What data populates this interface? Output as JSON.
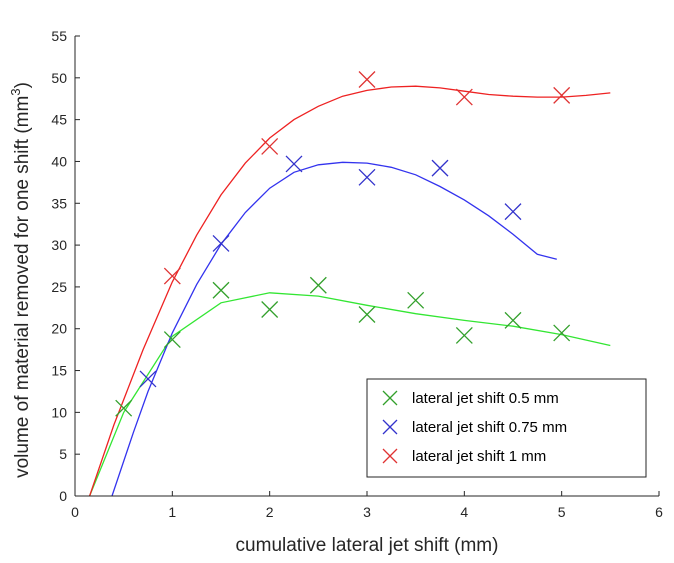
{
  "chart_data": {
    "type": "scatter",
    "title": "",
    "xlabel": "cumulative lateral jet shift (mm)",
    "ylabel": "volume of material removed for one shift (mm",
    "ylabel_superscript": "3",
    "ylabel_suffix": ")",
    "xlim": [
      0,
      6
    ],
    "ylim": [
      0,
      55
    ],
    "xticks": [
      "0",
      "1",
      "2",
      "3",
      "4",
      "5",
      "6"
    ],
    "yticks": [
      "0",
      "5",
      "10",
      "15",
      "20",
      "25",
      "30",
      "35",
      "40",
      "45",
      "50",
      "55"
    ],
    "grid": false,
    "legend_position": "bottom-right",
    "series": [
      {
        "name": "lateral jet shift 0.5 mm",
        "color": "#33a02c",
        "fit_color": "#33e633",
        "x": [
          0.5,
          1.0,
          1.5,
          2.0,
          2.5,
          3.0,
          3.5,
          4.0,
          4.5,
          5.0
        ],
        "y": [
          10.5,
          18.7,
          24.6,
          22.3,
          25.2,
          21.7,
          23.4,
          19.2,
          21.0,
          19.5
        ],
        "fit": [
          [
            0.15,
            0
          ],
          [
            0.5,
            10.0
          ],
          [
            1.0,
            19.1
          ],
          [
            1.5,
            23.1
          ],
          [
            2.0,
            24.3
          ],
          [
            2.5,
            23.9
          ],
          [
            3.0,
            22.8
          ],
          [
            3.5,
            21.8
          ],
          [
            4.0,
            21.0
          ],
          [
            4.5,
            20.3
          ],
          [
            5.0,
            19.3
          ],
          [
            5.5,
            18.0
          ]
        ]
      },
      {
        "name": "lateral jet shift 0.75 mm",
        "color": "#3333cc",
        "fit_color": "#3333ee",
        "x": [
          0.75,
          1.5,
          2.25,
          3.0,
          3.75,
          4.5
        ],
        "y": [
          14.0,
          30.2,
          39.7,
          38.1,
          39.2,
          34.0
        ],
        "fit": [
          [
            0.38,
            0
          ],
          [
            0.6,
            7.6
          ],
          [
            0.75,
            12.5
          ],
          [
            1.0,
            19.5
          ],
          [
            1.25,
            25.3
          ],
          [
            1.5,
            30.1
          ],
          [
            1.75,
            33.9
          ],
          [
            2.0,
            36.8
          ],
          [
            2.25,
            38.7
          ],
          [
            2.5,
            39.6
          ],
          [
            2.75,
            39.9
          ],
          [
            3.0,
            39.8
          ],
          [
            3.25,
            39.3
          ],
          [
            3.5,
            38.4
          ],
          [
            3.75,
            37.0
          ],
          [
            4.0,
            35.4
          ],
          [
            4.25,
            33.5
          ],
          [
            4.5,
            31.3
          ],
          [
            4.75,
            28.9
          ],
          [
            4.95,
            28.3
          ]
        ]
      },
      {
        "name": "lateral jet shift 1 mm",
        "color": "#e03333",
        "fit_color": "#ee2222",
        "x": [
          1.0,
          2.0,
          3.0,
          4.0,
          5.0
        ],
        "y": [
          26.3,
          41.8,
          49.8,
          47.7,
          47.9
        ],
        "fit": [
          [
            0.15,
            0
          ],
          [
            0.4,
            8.5
          ],
          [
            0.7,
            17.5
          ],
          [
            1.0,
            25.6
          ],
          [
            1.25,
            31.2
          ],
          [
            1.5,
            36.0
          ],
          [
            1.75,
            39.8
          ],
          [
            2.0,
            42.8
          ],
          [
            2.25,
            45.0
          ],
          [
            2.5,
            46.6
          ],
          [
            2.75,
            47.8
          ],
          [
            3.0,
            48.5
          ],
          [
            3.25,
            48.9
          ],
          [
            3.5,
            49.0
          ],
          [
            3.75,
            48.8
          ],
          [
            4.0,
            48.4
          ],
          [
            4.25,
            48.0
          ],
          [
            4.5,
            47.8
          ],
          [
            4.75,
            47.7
          ],
          [
            5.0,
            47.7
          ],
          [
            5.25,
            47.9
          ],
          [
            5.5,
            48.2
          ]
        ]
      }
    ]
  }
}
